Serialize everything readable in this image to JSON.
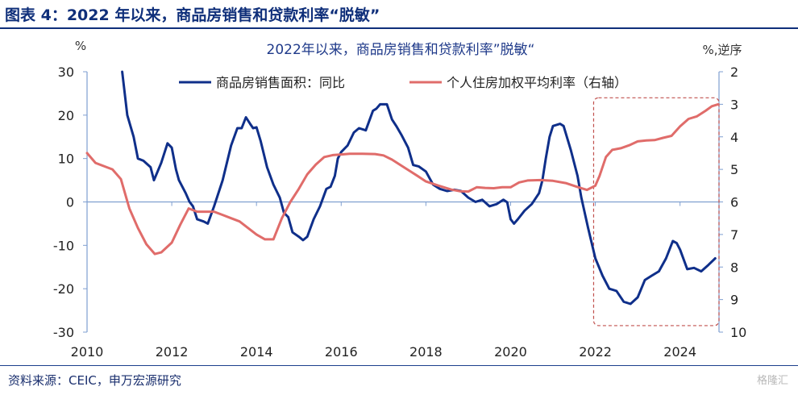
{
  "header": {
    "title": "图表 4：2022 年以来，商品房销售和贷款利率“脱敏”"
  },
  "footer": {
    "source": "资料来源：CEIC，申万宏源研究",
    "watermark": "格隆汇"
  },
  "chart_data": {
    "type": "line",
    "title": "2022年以来，商品房销售和贷款利率”脱敏“",
    "ylabel_left": "%",
    "ylabel_right": "%,逆序",
    "left_axis": {
      "min": -30,
      "max": 30,
      "ticks": [
        30,
        20,
        10,
        0,
        -10,
        -20,
        -30
      ]
    },
    "right_axis": {
      "min": 2,
      "max": 10,
      "inverted": true,
      "ticks": [
        2,
        3,
        4,
        5,
        6,
        7,
        8,
        9,
        10
      ]
    },
    "x_axis": {
      "min": 2010,
      "max": 2024.92,
      "ticks": [
        2010,
        2012,
        2014,
        2016,
        2018,
        2020,
        2022,
        2024
      ]
    },
    "highlight_box": {
      "x_start": 2021.96,
      "x_end": 2024.92,
      "y_top": 2.8,
      "y_bottom": 9.8,
      "axis": "right",
      "style": "dashed",
      "color": "#c0504d"
    },
    "series": [
      {
        "name": "商品房销售面积：同比",
        "axis": "left",
        "color": "#0f2f8a",
        "points": [
          [
            2010.83,
            30
          ],
          [
            2010.95,
            20
          ],
          [
            2011.1,
            15
          ],
          [
            2011.2,
            10
          ],
          [
            2011.33,
            9.5
          ],
          [
            2011.5,
            8
          ],
          [
            2011.58,
            5
          ],
          [
            2011.75,
            9
          ],
          [
            2011.9,
            13.5
          ],
          [
            2012.0,
            12.5
          ],
          [
            2012.1,
            7.5
          ],
          [
            2012.17,
            5
          ],
          [
            2012.33,
            2
          ],
          [
            2012.42,
            0
          ],
          [
            2012.5,
            -1
          ],
          [
            2012.6,
            -4
          ],
          [
            2012.75,
            -4.5
          ],
          [
            2012.85,
            -5
          ],
          [
            2013.0,
            -1
          ],
          [
            2013.2,
            5
          ],
          [
            2013.4,
            13
          ],
          [
            2013.55,
            17
          ],
          [
            2013.65,
            17
          ],
          [
            2013.75,
            19.5
          ],
          [
            2013.85,
            18
          ],
          [
            2013.92,
            17
          ],
          [
            2014.0,
            17.2
          ],
          [
            2014.1,
            14
          ],
          [
            2014.25,
            8
          ],
          [
            2014.4,
            4
          ],
          [
            2014.55,
            1
          ],
          [
            2014.65,
            -2.5
          ],
          [
            2014.75,
            -3.5
          ],
          [
            2014.85,
            -7
          ],
          [
            2015.0,
            -8
          ],
          [
            2015.1,
            -8.8
          ],
          [
            2015.2,
            -8
          ],
          [
            2015.35,
            -4
          ],
          [
            2015.5,
            -1
          ],
          [
            2015.65,
            3
          ],
          [
            2015.75,
            3.5
          ],
          [
            2015.85,
            6
          ],
          [
            2015.92,
            10
          ],
          [
            2016.0,
            11.5
          ],
          [
            2016.15,
            13
          ],
          [
            2016.3,
            16
          ],
          [
            2016.42,
            17
          ],
          [
            2016.58,
            16.5
          ],
          [
            2016.75,
            21
          ],
          [
            2016.83,
            21.5
          ],
          [
            2016.92,
            22.5
          ],
          [
            2017.08,
            22.5
          ],
          [
            2017.2,
            19
          ],
          [
            2017.3,
            17.5
          ],
          [
            2017.42,
            15.5
          ],
          [
            2017.58,
            12.5
          ],
          [
            2017.7,
            8.5
          ],
          [
            2017.83,
            8.2
          ],
          [
            2018.0,
            7
          ],
          [
            2018.17,
            4
          ],
          [
            2018.33,
            3
          ],
          [
            2018.5,
            2.5
          ],
          [
            2018.67,
            2.8
          ],
          [
            2018.83,
            2.5
          ],
          [
            2019.0,
            1
          ],
          [
            2019.17,
            0
          ],
          [
            2019.33,
            0.5
          ],
          [
            2019.5,
            -1
          ],
          [
            2019.67,
            -0.5
          ],
          [
            2019.83,
            0.5
          ],
          [
            2019.92,
            -0.1
          ],
          [
            2020.0,
            -4
          ],
          [
            2020.08,
            -5
          ],
          [
            2020.17,
            -4
          ],
          [
            2020.33,
            -2
          ],
          [
            2020.5,
            -0.5
          ],
          [
            2020.67,
            2
          ],
          [
            2020.75,
            5
          ],
          [
            2020.83,
            10
          ],
          [
            2020.92,
            15
          ],
          [
            2021.0,
            17.5
          ],
          [
            2021.17,
            18
          ],
          [
            2021.25,
            17.5
          ],
          [
            2021.42,
            12
          ],
          [
            2021.58,
            6
          ],
          [
            2021.67,
            1
          ],
          [
            2021.83,
            -6
          ],
          [
            2022.0,
            -13
          ],
          [
            2022.17,
            -17
          ],
          [
            2022.33,
            -20
          ],
          [
            2022.5,
            -20.5
          ],
          [
            2022.67,
            -23
          ],
          [
            2022.83,
            -23.5
          ],
          [
            2023.0,
            -22
          ],
          [
            2023.17,
            -18
          ],
          [
            2023.33,
            -17
          ],
          [
            2023.5,
            -16
          ],
          [
            2023.67,
            -13
          ],
          [
            2023.83,
            -9
          ],
          [
            2023.92,
            -9.5
          ],
          [
            2024.0,
            -11
          ],
          [
            2024.17,
            -15.5
          ],
          [
            2024.33,
            -15.2
          ],
          [
            2024.5,
            -16
          ],
          [
            2024.67,
            -14.5
          ],
          [
            2024.83,
            -13
          ]
        ]
      },
      {
        "name": "个人住房加权平均利率（右轴）",
        "axis": "right",
        "color": "#e06c6a",
        "points": [
          [
            2010.0,
            4.5
          ],
          [
            2010.2,
            4.8
          ],
          [
            2010.4,
            4.9
          ],
          [
            2010.6,
            5.0
          ],
          [
            2010.8,
            5.3
          ],
          [
            2011.0,
            6.2
          ],
          [
            2011.2,
            6.8
          ],
          [
            2011.4,
            7.3
          ],
          [
            2011.6,
            7.6
          ],
          [
            2011.75,
            7.55
          ],
          [
            2012.0,
            7.25
          ],
          [
            2012.2,
            6.7
          ],
          [
            2012.4,
            6.2
          ],
          [
            2012.6,
            6.3
          ],
          [
            2012.8,
            6.3
          ],
          [
            2013.0,
            6.3
          ],
          [
            2013.2,
            6.4
          ],
          [
            2013.4,
            6.5
          ],
          [
            2013.6,
            6.6
          ],
          [
            2013.8,
            6.8
          ],
          [
            2014.0,
            7.0
          ],
          [
            2014.2,
            7.15
          ],
          [
            2014.4,
            7.15
          ],
          [
            2014.6,
            6.5
          ],
          [
            2014.8,
            6.0
          ],
          [
            2015.0,
            5.6
          ],
          [
            2015.2,
            5.15
          ],
          [
            2015.4,
            4.85
          ],
          [
            2015.6,
            4.62
          ],
          [
            2015.8,
            4.56
          ],
          [
            2016.0,
            4.54
          ],
          [
            2016.2,
            4.52
          ],
          [
            2016.5,
            4.52
          ],
          [
            2016.8,
            4.53
          ],
          [
            2017.0,
            4.57
          ],
          [
            2017.2,
            4.7
          ],
          [
            2017.5,
            4.95
          ],
          [
            2017.8,
            5.2
          ],
          [
            2018.0,
            5.37
          ],
          [
            2018.3,
            5.5
          ],
          [
            2018.6,
            5.62
          ],
          [
            2018.8,
            5.67
          ],
          [
            2019.0,
            5.68
          ],
          [
            2019.2,
            5.55
          ],
          [
            2019.4,
            5.57
          ],
          [
            2019.6,
            5.58
          ],
          [
            2019.8,
            5.55
          ],
          [
            2020.0,
            5.55
          ],
          [
            2020.2,
            5.4
          ],
          [
            2020.4,
            5.34
          ],
          [
            2020.7,
            5.33
          ],
          [
            2021.0,
            5.35
          ],
          [
            2021.3,
            5.42
          ],
          [
            2021.6,
            5.55
          ],
          [
            2021.8,
            5.63
          ],
          [
            2022.0,
            5.5
          ],
          [
            2022.1,
            5.2
          ],
          [
            2022.25,
            4.62
          ],
          [
            2022.4,
            4.4
          ],
          [
            2022.6,
            4.35
          ],
          [
            2022.8,
            4.26
          ],
          [
            2023.0,
            4.14
          ],
          [
            2023.2,
            4.11
          ],
          [
            2023.4,
            4.1
          ],
          [
            2023.6,
            4.03
          ],
          [
            2023.8,
            3.97
          ],
          [
            2024.0,
            3.68
          ],
          [
            2024.2,
            3.45
          ],
          [
            2024.4,
            3.37
          ],
          [
            2024.6,
            3.2
          ],
          [
            2024.75,
            3.06
          ],
          [
            2024.9,
            3.0
          ]
        ]
      }
    ]
  }
}
